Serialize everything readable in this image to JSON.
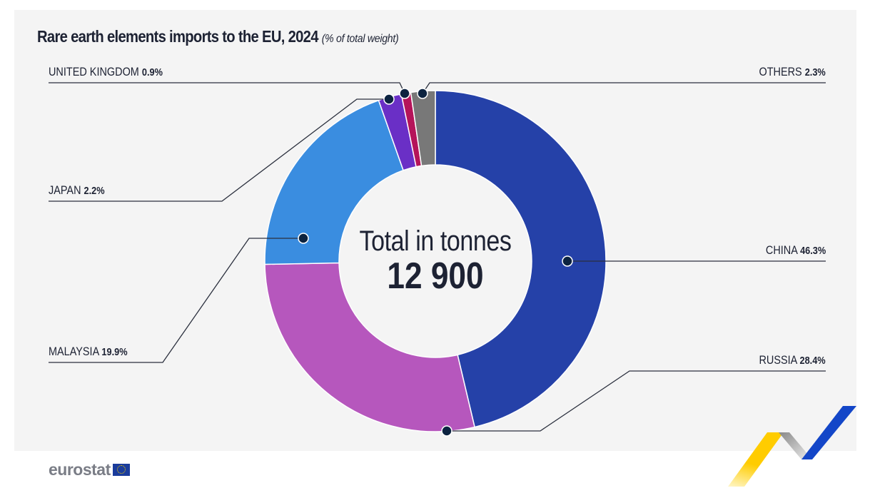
{
  "title": "Rare earth elements imports to the EU, 2024",
  "subtitle": "(% of total weight)",
  "logo": "eurostat",
  "chart_data": {
    "type": "pie",
    "variant": "donut",
    "title": "Rare earth elements imports to the EU, 2024",
    "subtitle": "(% of total weight)",
    "unit": "%",
    "center_label": "Total in tonnes",
    "center_value": "12 900",
    "slices": [
      {
        "name": "CHINA",
        "value": 46.3,
        "label": "46.3%",
        "color": "#2541a8"
      },
      {
        "name": "RUSSIA",
        "value": 28.4,
        "label": "28.4%",
        "color": "#b657bd"
      },
      {
        "name": "MALAYSIA",
        "value": 19.9,
        "label": "19.9%",
        "color": "#3a8de0"
      },
      {
        "name": "JAPAN",
        "value": 2.2,
        "label": "2.2%",
        "color": "#6a2fc6"
      },
      {
        "name": "UNITED KINGDOM",
        "value": 0.9,
        "label": "0.9%",
        "color": "#b5145a"
      },
      {
        "name": "OTHERS",
        "value": 2.3,
        "label": "2.3%",
        "color": "#787878"
      }
    ]
  }
}
